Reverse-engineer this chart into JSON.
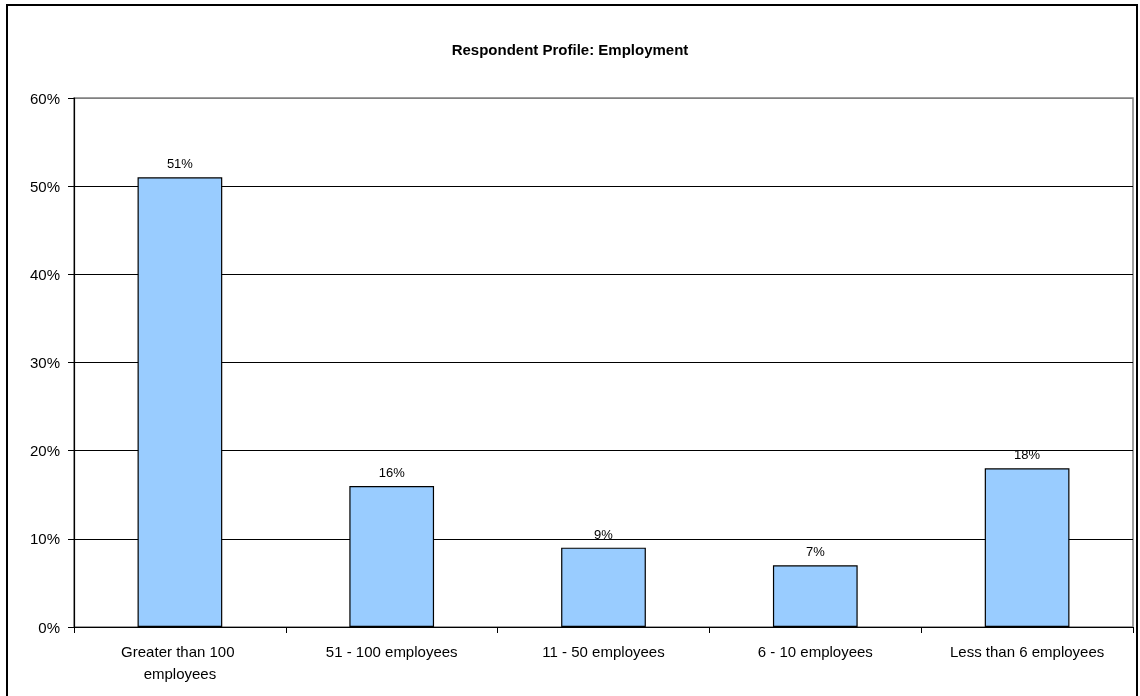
{
  "chart_data": {
    "type": "bar",
    "title": "Respondent Profile: Employment",
    "categories": [
      "Greater than 100 employees",
      "51 - 100 employees",
      "11 - 50 employees",
      "6 - 10 employees",
      "Less than 6 employees"
    ],
    "values": [
      51,
      16,
      9,
      7,
      18
    ],
    "value_labels": [
      "51%",
      "16%",
      "9%",
      "7%",
      "18%"
    ],
    "color": "#99ccff",
    "ylim": [
      0,
      60
    ],
    "yticks": [
      {
        "value": 0,
        "label": "0%"
      },
      {
        "value": 10,
        "label": "10%"
      },
      {
        "value": 20,
        "label": "20%"
      },
      {
        "value": 30,
        "label": "30%"
      },
      {
        "value": 40,
        "label": "40%"
      },
      {
        "value": 50,
        "label": "50%"
      },
      {
        "value": 60,
        "label": "60%"
      }
    ],
    "grid": "y"
  }
}
